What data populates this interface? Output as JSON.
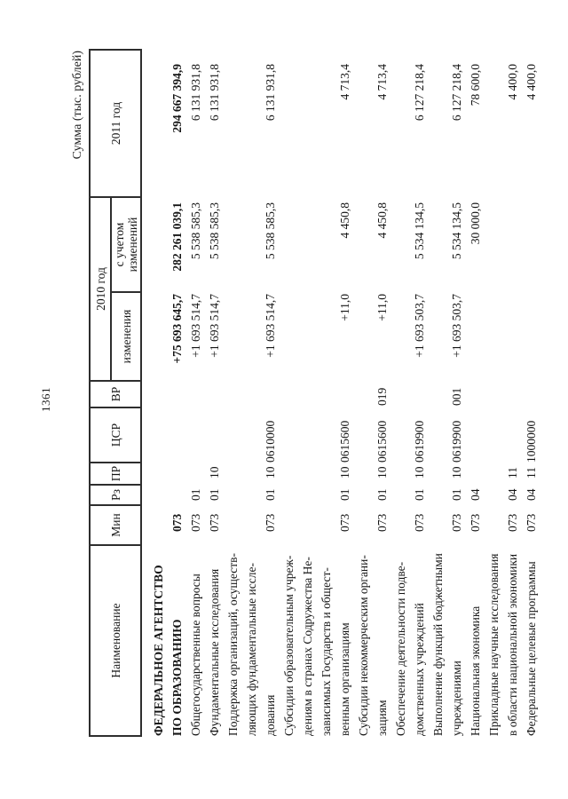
{
  "page": {
    "number": "1361",
    "units": "Сумма (тыс. рублей)"
  },
  "colors": {
    "paper": "#ffffff",
    "ink": "#1b1b1b",
    "line": "#2e2e2e"
  },
  "table": {
    "headers": {
      "name": "Наименование",
      "min": "Мин",
      "rz": "Рз",
      "pr": "ПР",
      "csr": "ЦСР",
      "vr": "ВР",
      "y2010": "2010 год",
      "izm": "изменения",
      "uchet": "с учетом изменений",
      "y2011": "2011 год"
    },
    "rows": [
      {
        "name": "ФЕДЕРАЛЬНОЕ АГЕНТСТВО\nПО ОБРАЗОВАНИЮ",
        "min": "073",
        "rz": "",
        "pr": "",
        "csr": "",
        "vr": "",
        "izm": "+75 693 645,7",
        "uchet": "282 261 039,1",
        "y2011": "294 667 394,9",
        "bold": true
      },
      {
        "name": "Общегосударственные вопросы",
        "min": "073",
        "rz": "01",
        "pr": "",
        "csr": "",
        "vr": "",
        "izm": "+1 693 514,7",
        "uchet": "5 538 585,3",
        "y2011": "6 131 931,8",
        "bold": false
      },
      {
        "name": "Фундаментальные исследования",
        "min": "073",
        "rz": "01",
        "pr": "10",
        "csr": "",
        "vr": "",
        "izm": "+1 693 514,7",
        "uchet": "5 538 585,3",
        "y2011": "6 131 931,8",
        "bold": false
      },
      {
        "name": "Поддержка организаций, осуществ-\nляющих фундаментальные иссле-\nдования",
        "min": "073",
        "rz": "01",
        "pr": "10",
        "csr": "0610000",
        "vr": "",
        "izm": "+1 693 514,7",
        "uchet": "5 538 585,3",
        "y2011": "6 131 931,8",
        "bold": false
      },
      {
        "name": "Субсидии образовательным учреж-\nдениям в странах Содружества Не-\nзависимых Государств и общест-\nвенным организациям",
        "min": "073",
        "rz": "01",
        "pr": "10",
        "csr": "0615600",
        "vr": "",
        "izm": "+11,0",
        "uchet": "4 450,8",
        "y2011": "4 713,4",
        "bold": false
      },
      {
        "name": "Субсидии некоммерческим органи-\nзациям",
        "min": "073",
        "rz": "01",
        "pr": "10",
        "csr": "0615600",
        "vr": "019",
        "izm": "+11,0",
        "uchet": "4 450,8",
        "y2011": "4 713,4",
        "bold": false
      },
      {
        "name": "Обеспечение деятельности подве-\nдомственных учреждений",
        "min": "073",
        "rz": "01",
        "pr": "10",
        "csr": "0619900",
        "vr": "",
        "izm": "+1 693 503,7",
        "uchet": "5 534 134,5",
        "y2011": "6 127 218,4",
        "bold": false
      },
      {
        "name": "Выполнение функций бюджетными\nучреждениями",
        "min": "073",
        "rz": "01",
        "pr": "10",
        "csr": "0619900",
        "vr": "001",
        "izm": "+1 693 503,7",
        "uchet": "5 534 134,5",
        "y2011": "6 127 218,4",
        "bold": false
      },
      {
        "name": "Национальная экономика",
        "min": "073",
        "rz": "04",
        "pr": "",
        "csr": "",
        "vr": "",
        "izm": "",
        "uchet": "30 000,0",
        "y2011": "78 600,0",
        "bold": false
      },
      {
        "name": "Прикладные научные исследования\nв области национальной экономики",
        "min": "073",
        "rz": "04",
        "pr": "11",
        "csr": "",
        "vr": "",
        "izm": "",
        "uchet": "",
        "y2011": "4 400,0",
        "bold": false
      },
      {
        "name": "Федеральные целевые программы",
        "min": "073",
        "rz": "04",
        "pr": "11",
        "csr": "1000000",
        "vr": "",
        "izm": "",
        "uchet": "",
        "y2011": "4 400,0",
        "bold": false
      }
    ]
  }
}
